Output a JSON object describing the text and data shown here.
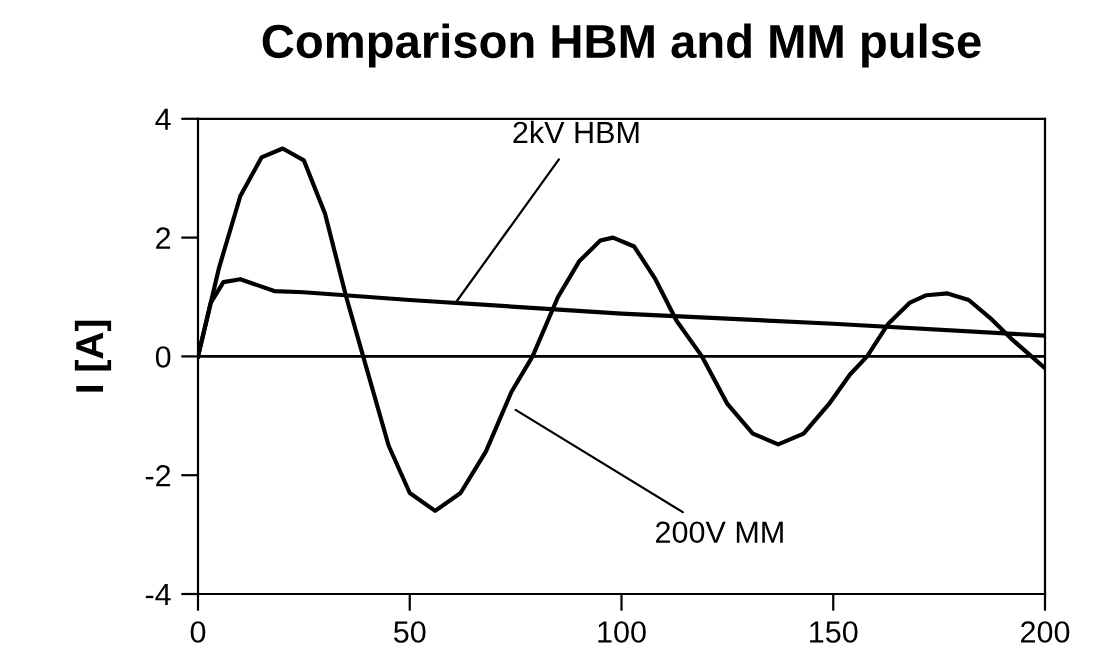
{
  "chart_data": {
    "type": "line",
    "title": "Comparison HBM and MM pulse",
    "ylabel": "I [A]",
    "xlim": [
      0,
      200
    ],
    "xticks": [
      0,
      50,
      100,
      150,
      200
    ],
    "ylim": [
      -4,
      4
    ],
    "yticks": [
      -4,
      -2,
      0,
      2,
      4
    ],
    "grid": false,
    "legend": false,
    "marker": "none",
    "line_style": "solid",
    "ref_lines": [
      {
        "axis": "y",
        "value": 0,
        "color": "#000000"
      }
    ],
    "series": [
      {
        "color": "#000000",
        "x": [
          0,
          3,
          6,
          10,
          14,
          18,
          25,
          50,
          100,
          150,
          200
        ],
        "values": [
          0,
          0.9,
          1.25,
          1.3,
          1.2,
          1.1,
          1.08,
          0.95,
          0.72,
          0.55,
          0.35
        ]
      },
      {
        "color": "#000000",
        "x": [
          0,
          5,
          10,
          15,
          20,
          25,
          30,
          35,
          39,
          45,
          50,
          56,
          62,
          68,
          74,
          79,
          85,
          90,
          95,
          98,
          103,
          108,
          113,
          119,
          125,
          131,
          137,
          143,
          149,
          154,
          158,
          163,
          168,
          172,
          177,
          182,
          187,
          192,
          196,
          200
        ],
        "values": [
          0,
          1.5,
          2.7,
          3.35,
          3.5,
          3.3,
          2.4,
          1.0,
          0,
          -1.5,
          -2.3,
          -2.6,
          -2.3,
          -1.6,
          -0.6,
          0,
          1.0,
          1.6,
          1.95,
          2.0,
          1.85,
          1.3,
          0.6,
          0,
          -0.8,
          -1.3,
          -1.48,
          -1.3,
          -0.8,
          -0.3,
          0,
          0.55,
          0.9,
          1.03,
          1.06,
          0.95,
          0.65,
          0.3,
          0.05,
          -0.2
        ]
      }
    ],
    "annotations": [
      {
        "text": "2kV HBM",
        "x": 61,
        "y": 0.92
      },
      {
        "text": "200V MM",
        "x": 75,
        "y": -0.9
      }
    ]
  }
}
